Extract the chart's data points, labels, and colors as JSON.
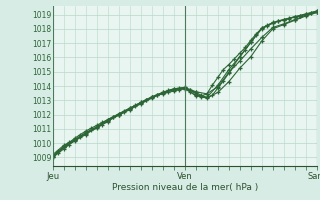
{
  "bg_color": "#d6ece4",
  "plot_bg_color": "#e8f5f0",
  "grid_color": "#b8d8cc",
  "line_color": "#2d6636",
  "marker_color": "#2d6636",
  "vline_color": "#4a7a5a",
  "xlabel": "Pression niveau de la mer( hPa )",
  "yticks": [
    1009,
    1010,
    1011,
    1012,
    1013,
    1014,
    1015,
    1016,
    1017,
    1018,
    1019
  ],
  "ylim": [
    1008.4,
    1019.6
  ],
  "xlim": [
    0,
    48
  ],
  "xtick_pos": [
    0,
    24,
    48
  ],
  "xtick_labels": [
    "Jeu",
    "Ven",
    "Sam"
  ],
  "series1_x": [
    0,
    1,
    2,
    3,
    4,
    5,
    6,
    7,
    8,
    9,
    10,
    11,
    12,
    13,
    14,
    15,
    16,
    17,
    18,
    19,
    20,
    21,
    22,
    23,
    24,
    25,
    26,
    27,
    28,
    29,
    30,
    31,
    32,
    33,
    34,
    35,
    36,
    37,
    38,
    39,
    40,
    41,
    42,
    43,
    44,
    45,
    46,
    47,
    48
  ],
  "series1_y": [
    1009.0,
    1009.3,
    1009.6,
    1009.9,
    1010.2,
    1010.4,
    1010.6,
    1010.9,
    1011.1,
    1011.3,
    1011.5,
    1011.8,
    1012.0,
    1012.2,
    1012.4,
    1012.6,
    1012.8,
    1013.0,
    1013.2,
    1013.35,
    1013.45,
    1013.55,
    1013.65,
    1013.75,
    1013.8,
    1013.72,
    1013.55,
    1013.35,
    1013.2,
    1013.35,
    1013.85,
    1014.35,
    1014.9,
    1015.5,
    1016.05,
    1016.55,
    1017.05,
    1017.55,
    1018.0,
    1018.2,
    1018.4,
    1018.52,
    1018.62,
    1018.72,
    1018.82,
    1018.9,
    1019.0,
    1019.1,
    1019.2
  ],
  "series2_x": [
    0,
    1,
    2,
    3,
    4,
    5,
    6,
    7,
    8,
    9,
    10,
    11,
    12,
    13,
    14,
    15,
    16,
    17,
    18,
    19,
    20,
    21,
    22,
    23,
    24,
    25,
    26,
    27,
    28,
    29,
    30,
    31,
    32,
    33,
    34,
    35,
    36,
    37,
    38,
    39,
    40,
    41,
    42,
    43,
    44,
    45,
    46,
    47,
    48
  ],
  "series2_y": [
    1009.1,
    1009.45,
    1009.75,
    1010.05,
    1010.35,
    1010.6,
    1010.85,
    1011.05,
    1011.25,
    1011.45,
    1011.65,
    1011.85,
    1012.05,
    1012.25,
    1012.45,
    1012.65,
    1012.85,
    1013.05,
    1013.2,
    1013.4,
    1013.55,
    1013.7,
    1013.8,
    1013.85,
    1013.9,
    1013.6,
    1013.3,
    1013.3,
    1013.45,
    1014.05,
    1014.6,
    1015.15,
    1015.5,
    1015.9,
    1016.3,
    1016.7,
    1017.2,
    1017.65,
    1018.05,
    1018.25,
    1018.42,
    1018.55,
    1018.65,
    1018.75,
    1018.85,
    1018.92,
    1019.02,
    1019.12,
    1019.25
  ],
  "series3_x": [
    0,
    2,
    4,
    6,
    8,
    10,
    12,
    14,
    16,
    18,
    20,
    22,
    24,
    25,
    26,
    27,
    28,
    30,
    32,
    34,
    36,
    38,
    40,
    42,
    44,
    46,
    48
  ],
  "series3_y": [
    1009.05,
    1009.7,
    1010.15,
    1010.65,
    1011.05,
    1011.55,
    1011.95,
    1012.35,
    1012.75,
    1013.15,
    1013.5,
    1013.75,
    1013.85,
    1013.7,
    1013.45,
    1013.25,
    1013.2,
    1014.05,
    1015.15,
    1016.05,
    1017.05,
    1018.05,
    1018.45,
    1018.65,
    1018.85,
    1019.05,
    1019.25
  ],
  "series4_x": [
    0,
    2,
    4,
    6,
    8,
    10,
    12,
    14,
    16,
    18,
    20,
    22,
    24,
    26,
    28,
    30,
    32,
    34,
    36,
    38,
    40,
    42,
    44,
    46,
    48
  ],
  "series4_y": [
    1009.2,
    1009.85,
    1010.25,
    1010.75,
    1011.15,
    1011.65,
    1012.05,
    1012.45,
    1012.85,
    1013.25,
    1013.55,
    1013.8,
    1013.9,
    1013.6,
    1013.45,
    1013.95,
    1014.95,
    1015.75,
    1016.6,
    1017.4,
    1018.1,
    1018.35,
    1018.65,
    1018.95,
    1019.15
  ],
  "series5_x": [
    0,
    2,
    4,
    6,
    8,
    10,
    12,
    14,
    16,
    18,
    20,
    22,
    24,
    26,
    28,
    30,
    32,
    34,
    36,
    38,
    40,
    42,
    44,
    46,
    48
  ],
  "series5_y": [
    1009.0,
    1009.75,
    1010.2,
    1010.7,
    1011.1,
    1011.6,
    1012.0,
    1012.4,
    1012.8,
    1013.2,
    1013.5,
    1013.75,
    1013.8,
    1013.35,
    1013.15,
    1013.55,
    1014.3,
    1015.25,
    1016.05,
    1017.15,
    1018.0,
    1018.3,
    1018.6,
    1018.9,
    1019.15
  ]
}
